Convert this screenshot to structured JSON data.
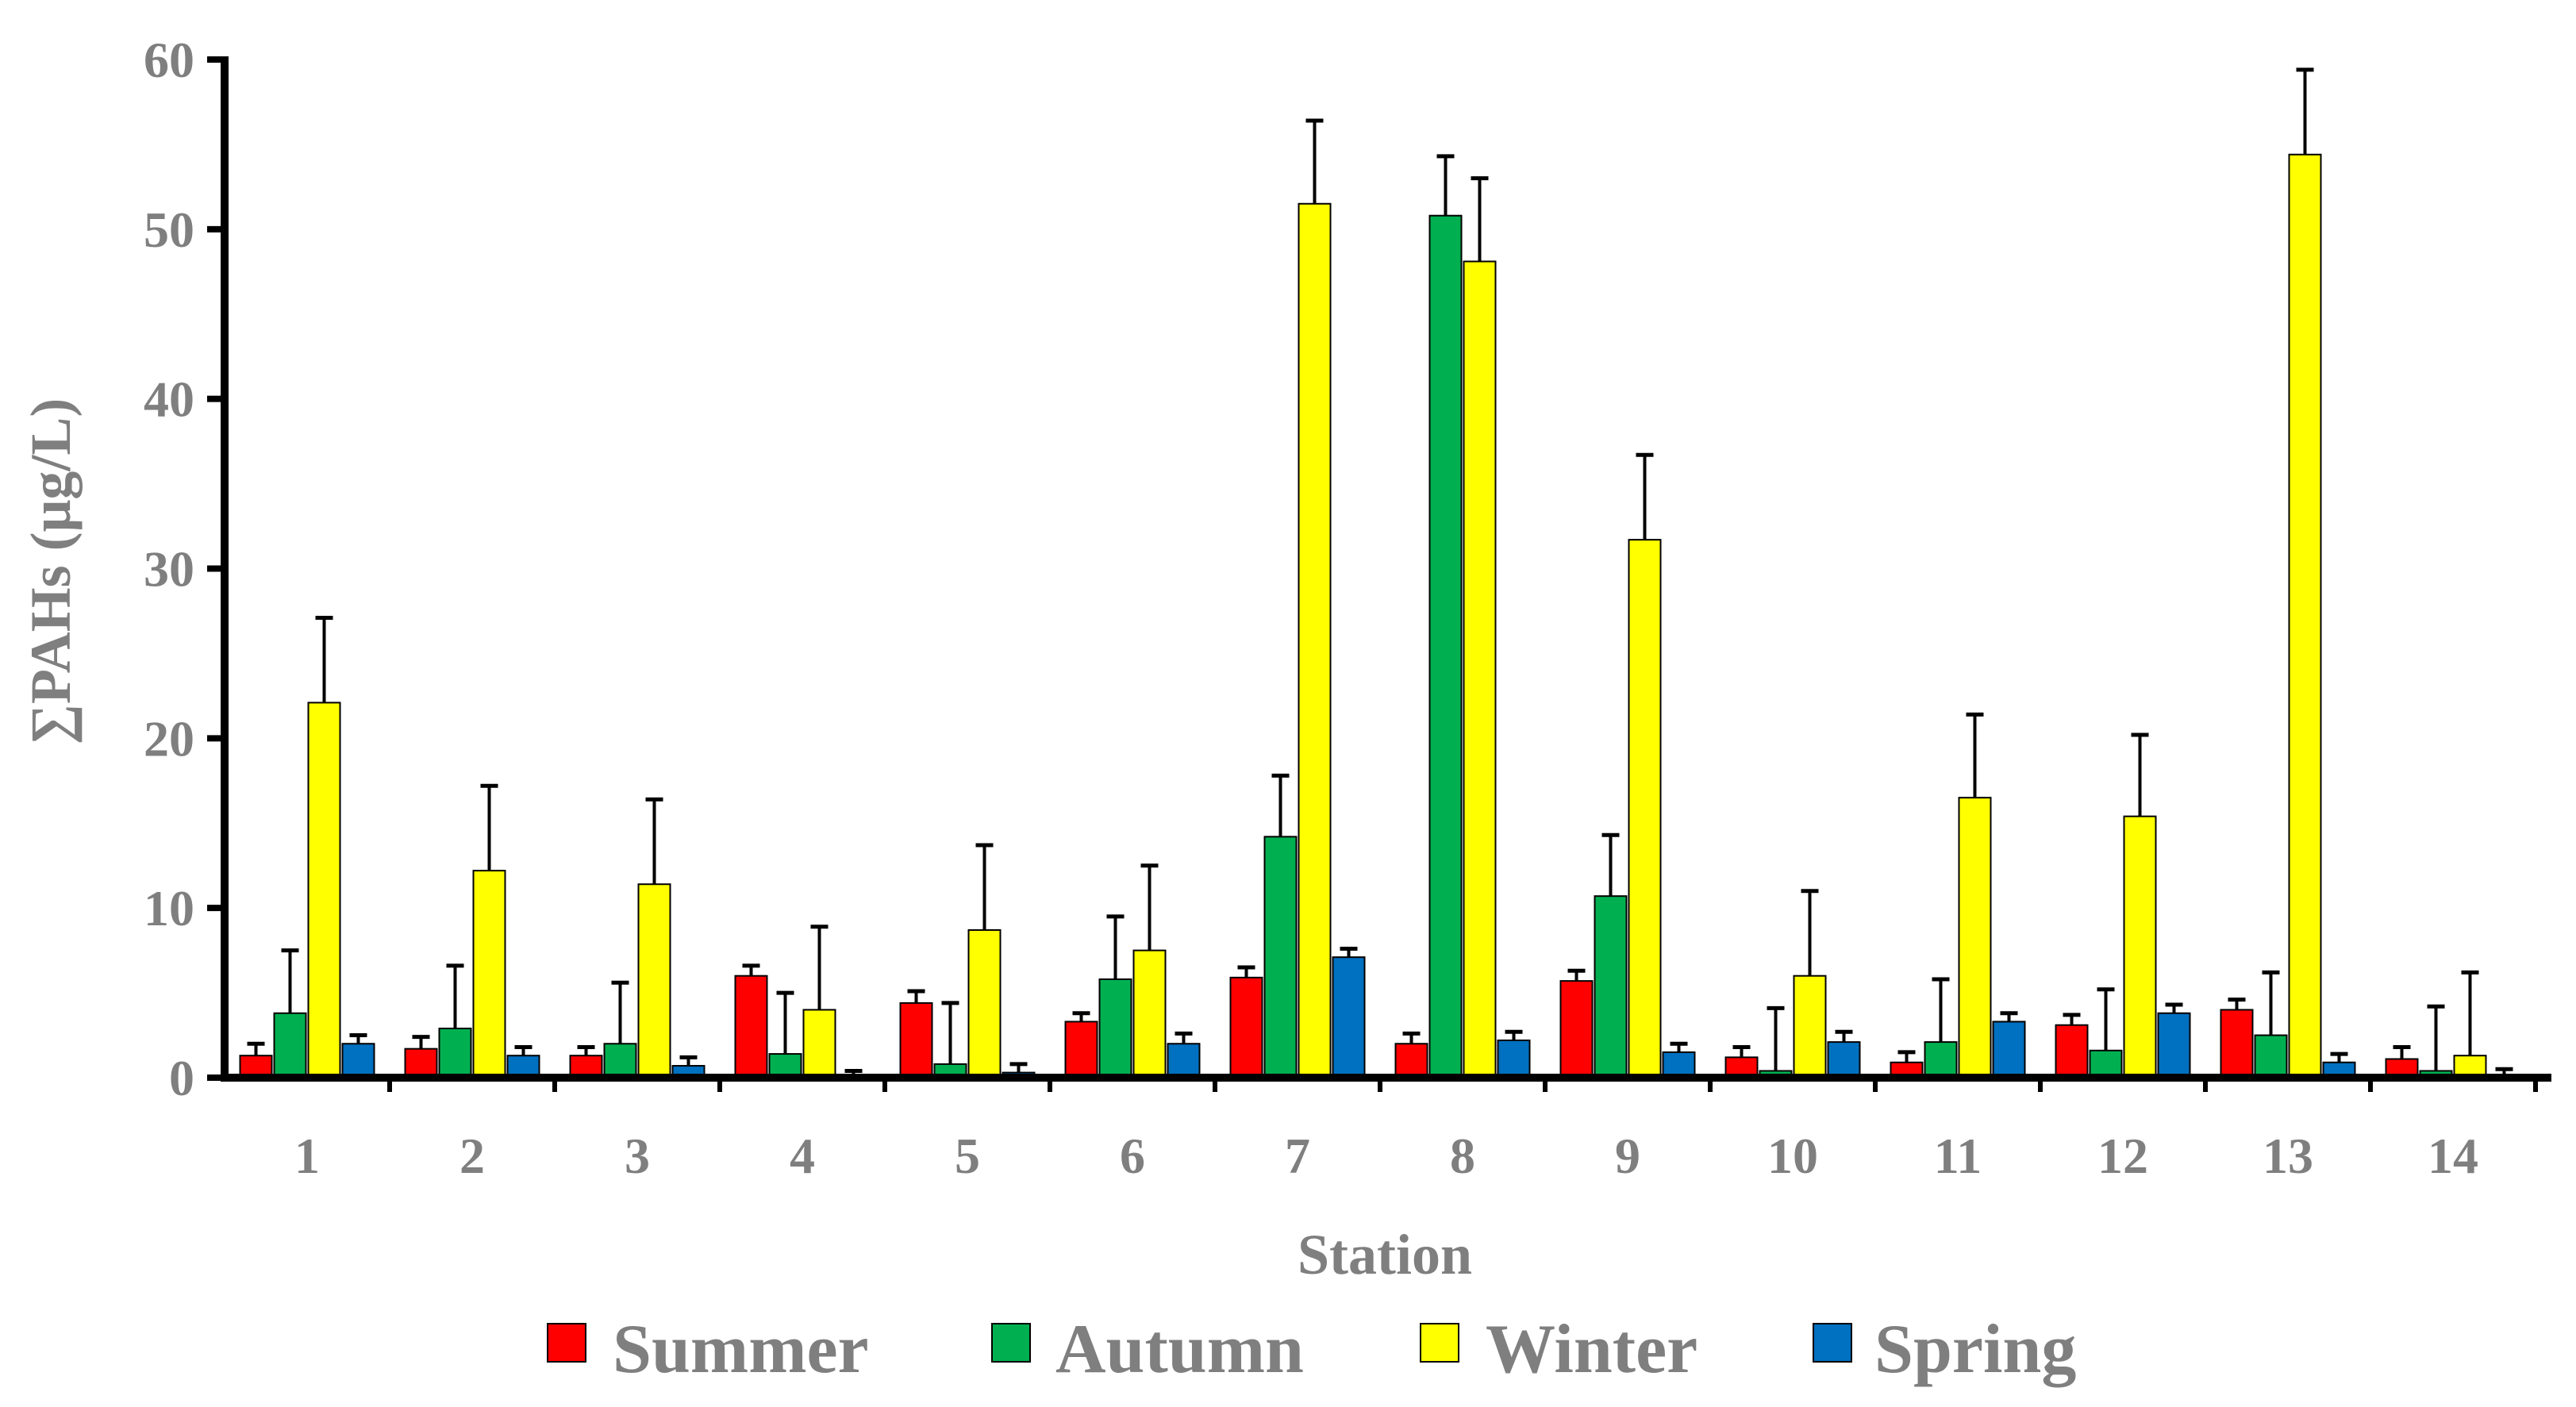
{
  "chart_data": {
    "type": "bar",
    "title": "",
    "xlabel": "Station",
    "ylabel": "∑PAHs (μg/L)",
    "ylim": [
      0,
      60
    ],
    "yticks": [
      "0",
      "10",
      "20",
      "30",
      "40",
      "50",
      "60"
    ],
    "categories": [
      "1",
      "2",
      "3",
      "4",
      "5",
      "6",
      "7",
      "8",
      "9",
      "10",
      "11",
      "12",
      "13",
      "14"
    ],
    "legend_position": "bottom",
    "series": [
      {
        "name": "Summer",
        "color": "#ff0000",
        "values": [
          1.3,
          1.7,
          1.3,
          6.0,
          4.4,
          3.3,
          5.9,
          2.0,
          5.7,
          1.2,
          0.9,
          3.1,
          4.0,
          1.1
        ],
        "errors": [
          0.7,
          0.7,
          0.5,
          0.6,
          0.7,
          0.5,
          0.6,
          0.6,
          0.6,
          0.6,
          0.6,
          0.6,
          0.6,
          0.7
        ]
      },
      {
        "name": "Autumn",
        "color": "#00b050",
        "values": [
          3.8,
          2.9,
          2.0,
          1.4,
          0.8,
          5.8,
          14.2,
          50.8,
          10.7,
          0.4,
          2.1,
          1.6,
          2.5,
          0.4
        ],
        "errors": [
          3.7,
          3.7,
          3.6,
          3.6,
          3.6,
          3.7,
          3.6,
          3.5,
          3.6,
          3.7,
          3.7,
          3.6,
          3.7,
          3.8
        ]
      },
      {
        "name": "Winter",
        "color": "#ffff00",
        "values": [
          22.1,
          12.2,
          11.4,
          4.0,
          8.7,
          7.5,
          51.5,
          48.1,
          31.7,
          6.0,
          16.5,
          15.4,
          54.4,
          1.3
        ],
        "errors": [
          5.0,
          5.0,
          5.0,
          4.9,
          5.0,
          5.0,
          4.9,
          4.9,
          5.0,
          5.0,
          4.9,
          4.8,
          5.0,
          4.9
        ]
      },
      {
        "name": "Spring",
        "color": "#0070c0",
        "values": [
          2.0,
          1.3,
          0.7,
          0.1,
          0.3,
          2.0,
          7.1,
          2.2,
          1.5,
          2.1,
          3.3,
          3.8,
          0.9,
          0.1
        ],
        "errors": [
          0.5,
          0.5,
          0.5,
          0.3,
          0.5,
          0.6,
          0.5,
          0.5,
          0.5,
          0.6,
          0.5,
          0.5,
          0.5,
          0.4
        ]
      }
    ]
  }
}
